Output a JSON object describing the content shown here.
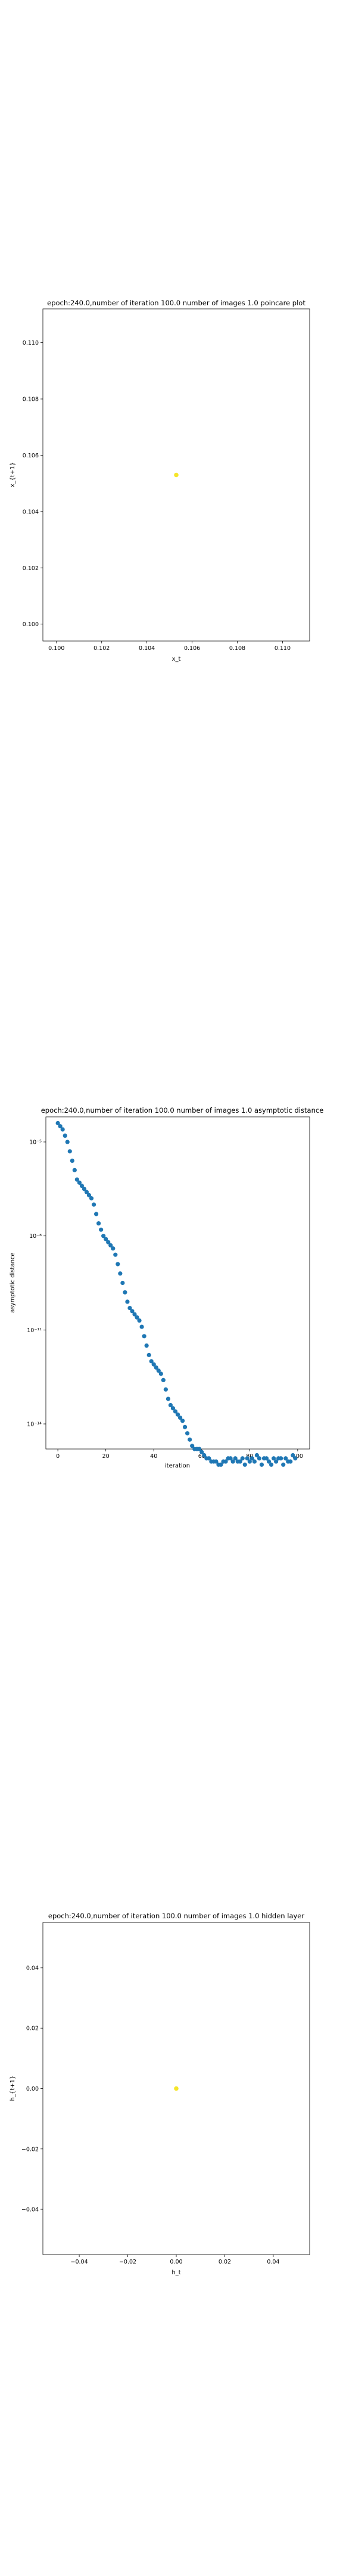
{
  "chart_data": [
    {
      "type": "scatter",
      "title": "epoch:240.0,number of iteration 100.0 number of images 1.0 poincare plot",
      "xlabel": "x_t",
      "ylabel": "x_{t+1}",
      "xlim": [
        0.0994,
        0.1112
      ],
      "ylim": [
        0.0994,
        0.1112
      ],
      "xticks": [
        0.1,
        0.102,
        0.104,
        0.106,
        0.108,
        0.11
      ],
      "xtick_labels": [
        "0.100",
        "0.102",
        "0.104",
        "0.106",
        "0.108",
        "0.110"
      ],
      "yticks": [
        0.1,
        0.102,
        0.104,
        0.106,
        0.108,
        0.11
      ],
      "ytick_labels": [
        "0.100",
        "0.102",
        "0.104",
        "0.106",
        "0.108",
        "0.110"
      ],
      "point_color": "#f5e52a",
      "points": [
        [
          0.1053,
          0.1053
        ]
      ]
    },
    {
      "type": "scatter",
      "title": "epoch:240.0,number of iteration 100.0  number of images 1.0 asymptotic distance",
      "xlabel": "iteration",
      "ylabel": "asymptotic distance",
      "yscale": "log",
      "xlim": [
        -5,
        105
      ],
      "ylim_log10": [
        -14.8,
        -4.2
      ],
      "xticks": [
        0,
        20,
        40,
        60,
        80,
        100
      ],
      "xtick_labels": [
        "0",
        "20",
        "40",
        "60",
        "80",
        "100"
      ],
      "yticks_log10": [
        -5,
        -8,
        -11,
        -14
      ],
      "ytick_labels": [
        "10⁻⁵",
        "10⁻⁸",
        "10⁻¹¹",
        "10⁻¹⁴"
      ],
      "point_color": "#1f77b4",
      "x": [
        0,
        1,
        2,
        3,
        4,
        5,
        6,
        7,
        8,
        9,
        10,
        11,
        12,
        13,
        14,
        15,
        16,
        17,
        18,
        19,
        20,
        21,
        22,
        23,
        24,
        25,
        26,
        27,
        28,
        29,
        30,
        31,
        32,
        33,
        34,
        35,
        36,
        37,
        38,
        39,
        40,
        41,
        42,
        43,
        44,
        45,
        46,
        47,
        48,
        49,
        50,
        51,
        52,
        53,
        54,
        55,
        56,
        57,
        58,
        59,
        60,
        61,
        62,
        63,
        64,
        65,
        66,
        67,
        68,
        69,
        70,
        71,
        72,
        73,
        74,
        75,
        76,
        77,
        78,
        79,
        80,
        81,
        82,
        83,
        84,
        85,
        86,
        87,
        88,
        89,
        90,
        91,
        92,
        93,
        94,
        95,
        96,
        97,
        98,
        99
      ],
      "log10_y": [
        -4.4,
        -4.5,
        -4.6,
        -4.8,
        -5.0,
        -5.3,
        -5.6,
        -5.9,
        -6.2,
        -6.3,
        -6.4,
        -6.5,
        -6.6,
        -6.7,
        -6.8,
        -7.0,
        -7.3,
        -7.6,
        -7.8,
        -8.0,
        -8.1,
        -8.2,
        -8.3,
        -8.4,
        -8.6,
        -8.9,
        -9.2,
        -9.5,
        -9.8,
        -10.1,
        -10.3,
        -10.4,
        -10.5,
        -10.6,
        -10.7,
        -10.9,
        -11.2,
        -11.5,
        -11.8,
        -12.0,
        -12.1,
        -12.2,
        -12.3,
        -12.4,
        -12.6,
        -12.9,
        -13.2,
        -13.4,
        -13.5,
        -13.6,
        -13.7,
        -13.8,
        -13.9,
        -14.1,
        -14.3,
        -14.5,
        -14.7,
        -14.8,
        -14.8,
        -14.8,
        -14.9,
        -15.0,
        -15.1,
        -15.1,
        -15.2,
        -15.2,
        -15.2,
        -15.3,
        -15.3,
        -15.2,
        -15.2,
        -15.1,
        -15.1,
        -15.2,
        -15.1,
        -15.2,
        -15.2,
        -15.1,
        -15.3,
        -15.1,
        -15.2,
        -15.1,
        -15.2,
        -15.0,
        -15.1,
        -15.3,
        -15.1,
        -15.1,
        -15.2,
        -15.3,
        -15.1,
        -15.2,
        -15.1,
        -15.1,
        -15.3,
        -15.1,
        -15.2,
        -15.2,
        -15.0,
        -15.1
      ]
    },
    {
      "type": "scatter",
      "title": "epoch:240.0,number of iteration 100.0  number of images 1.0 hidden layer",
      "xlabel": "h_t",
      "ylabel": "h_{t+1}",
      "xlim": [
        -0.055,
        0.055
      ],
      "ylim": [
        -0.055,
        0.055
      ],
      "xticks": [
        -0.04,
        -0.02,
        0.0,
        0.02,
        0.04
      ],
      "xtick_labels": [
        "−0.04",
        "−0.02",
        "0.00",
        "0.02",
        "0.04"
      ],
      "yticks": [
        -0.04,
        -0.02,
        0.0,
        0.02,
        0.04
      ],
      "ytick_labels": [
        "−0.04",
        "−0.02",
        "0.00",
        "0.02",
        "0.04"
      ],
      "point_color": "#f5e52a",
      "points": [
        [
          0.0,
          0.0
        ]
      ]
    }
  ]
}
